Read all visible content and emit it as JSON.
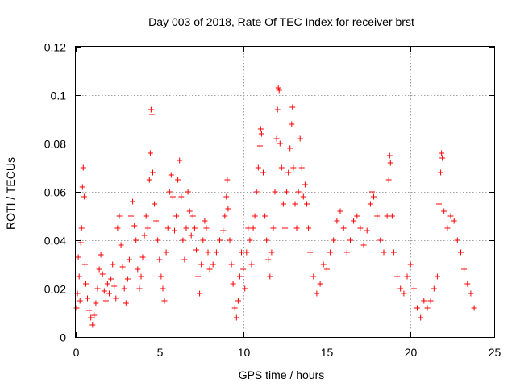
{
  "chart_data": {
    "type": "scatter",
    "title": "Day 003 of 2018, Rate Of TEC Index for receiver brst",
    "xlabel": "GPS time / hours",
    "ylabel": "ROTI / TECUs",
    "xlim": [
      0,
      25
    ],
    "ylim": [
      0,
      0.12
    ],
    "xticks": [
      0,
      5,
      10,
      15,
      20,
      25
    ],
    "xtick_labels": [
      "0",
      "5",
      "10",
      "15",
      "20",
      "25"
    ],
    "yticks": [
      0,
      0.02,
      0.04,
      0.06,
      0.08,
      0.1,
      0.12
    ],
    "ytick_labels": [
      "0",
      "0.02",
      "0.04",
      "0.06",
      "0.08",
      "0.1",
      "0.12"
    ],
    "grid": true,
    "marker": "plus",
    "color": "#ff0000",
    "series": [
      {
        "name": "ROTI",
        "points": [
          [
            0.05,
            0.012
          ],
          [
            0.1,
            0.018
          ],
          [
            0.15,
            0.033
          ],
          [
            0.2,
            0.025
          ],
          [
            0.25,
            0.015
          ],
          [
            0.3,
            0.039
          ],
          [
            0.35,
            0.045
          ],
          [
            0.4,
            0.062
          ],
          [
            0.45,
            0.07
          ],
          [
            0.5,
            0.058
          ],
          [
            0.55,
            0.03
          ],
          [
            0.6,
            0.022
          ],
          [
            0.7,
            0.016
          ],
          [
            0.8,
            0.011
          ],
          [
            0.9,
            0.008
          ],
          [
            1.0,
            0.005
          ],
          [
            1.1,
            0.009
          ],
          [
            1.2,
            0.014
          ],
          [
            1.3,
            0.02
          ],
          [
            1.4,
            0.028
          ],
          [
            1.5,
            0.034
          ],
          [
            1.6,
            0.026
          ],
          [
            1.7,
            0.019
          ],
          [
            1.8,
            0.015
          ],
          [
            1.9,
            0.022
          ],
          [
            2.0,
            0.018
          ],
          [
            2.1,
            0.024
          ],
          [
            2.2,
            0.03
          ],
          [
            2.3,
            0.021
          ],
          [
            2.4,
            0.016
          ],
          [
            2.5,
            0.045
          ],
          [
            2.6,
            0.05
          ],
          [
            2.7,
            0.038
          ],
          [
            2.8,
            0.029
          ],
          [
            2.9,
            0.02
          ],
          [
            3.0,
            0.014
          ],
          [
            3.1,
            0.024
          ],
          [
            3.2,
            0.032
          ],
          [
            3.3,
            0.05
          ],
          [
            3.4,
            0.056
          ],
          [
            3.5,
            0.046
          ],
          [
            3.6,
            0.04
          ],
          [
            3.7,
            0.028
          ],
          [
            3.8,
            0.02
          ],
          [
            3.9,
            0.025
          ],
          [
            4.0,
            0.033
          ],
          [
            4.1,
            0.042
          ],
          [
            4.2,
            0.05
          ],
          [
            4.3,
            0.045
          ],
          [
            4.4,
            0.065
          ],
          [
            4.45,
            0.076
          ],
          [
            4.5,
            0.094
          ],
          [
            4.55,
            0.092
          ],
          [
            4.6,
            0.068
          ],
          [
            4.7,
            0.055
          ],
          [
            4.8,
            0.048
          ],
          [
            4.9,
            0.04
          ],
          [
            5.0,
            0.032
          ],
          [
            5.1,
            0.025
          ],
          [
            5.2,
            0.02
          ],
          [
            5.3,
            0.015
          ],
          [
            5.4,
            0.035
          ],
          [
            5.5,
            0.045
          ],
          [
            5.6,
            0.06
          ],
          [
            5.7,
            0.067
          ],
          [
            5.8,
            0.058
          ],
          [
            5.9,
            0.044
          ],
          [
            6.0,
            0.05
          ],
          [
            6.1,
            0.065
          ],
          [
            6.2,
            0.073
          ],
          [
            6.3,
            0.058
          ],
          [
            6.4,
            0.04
          ],
          [
            6.5,
            0.032
          ],
          [
            6.6,
            0.045
          ],
          [
            6.7,
            0.06
          ],
          [
            6.8,
            0.052
          ],
          [
            6.9,
            0.042
          ],
          [
            7.0,
            0.05
          ],
          [
            7.1,
            0.045
          ],
          [
            7.2,
            0.036
          ],
          [
            7.3,
            0.025
          ],
          [
            7.4,
            0.018
          ],
          [
            7.5,
            0.03
          ],
          [
            7.6,
            0.04
          ],
          [
            7.7,
            0.048
          ],
          [
            7.8,
            0.045
          ],
          [
            7.9,
            0.035
          ],
          [
            8.0,
            0.028
          ],
          [
            8.2,
            0.03
          ],
          [
            8.4,
            0.035
          ],
          [
            8.6,
            0.04
          ],
          [
            8.8,
            0.044
          ],
          [
            8.9,
            0.05
          ],
          [
            9.0,
            0.058
          ],
          [
            9.05,
            0.065
          ],
          [
            9.1,
            0.053
          ],
          [
            9.2,
            0.04
          ],
          [
            9.3,
            0.03
          ],
          [
            9.4,
            0.022
          ],
          [
            9.5,
            0.012
          ],
          [
            9.6,
            0.008
          ],
          [
            9.7,
            0.015
          ],
          [
            9.8,
            0.025
          ],
          [
            9.9,
            0.035
          ],
          [
            10.0,
            0.028
          ],
          [
            10.1,
            0.02
          ],
          [
            10.2,
            0.035
          ],
          [
            10.3,
            0.045
          ],
          [
            10.4,
            0.04
          ],
          [
            10.5,
            0.03
          ],
          [
            10.6,
            0.045
          ],
          [
            10.7,
            0.05
          ],
          [
            10.8,
            0.06
          ],
          [
            10.9,
            0.07
          ],
          [
            11.0,
            0.079
          ],
          [
            11.05,
            0.086
          ],
          [
            11.1,
            0.084
          ],
          [
            11.2,
            0.068
          ],
          [
            11.3,
            0.05
          ],
          [
            11.4,
            0.04
          ],
          [
            11.5,
            0.032
          ],
          [
            11.6,
            0.025
          ],
          [
            11.7,
            0.035
          ],
          [
            11.8,
            0.045
          ],
          [
            11.9,
            0.06
          ],
          [
            12.0,
            0.082
          ],
          [
            12.05,
            0.094
          ],
          [
            12.1,
            0.103
          ],
          [
            12.15,
            0.102
          ],
          [
            12.2,
            0.08
          ],
          [
            12.3,
            0.07
          ],
          [
            12.4,
            0.055
          ],
          [
            12.5,
            0.045
          ],
          [
            12.6,
            0.06
          ],
          [
            12.7,
            0.068
          ],
          [
            12.8,
            0.078
          ],
          [
            12.9,
            0.088
          ],
          [
            12.95,
            0.095
          ],
          [
            13.0,
            0.07
          ],
          [
            13.1,
            0.055
          ],
          [
            13.2,
            0.045
          ],
          [
            13.3,
            0.06
          ],
          [
            13.4,
            0.082
          ],
          [
            13.5,
            0.07
          ],
          [
            13.6,
            0.058
          ],
          [
            13.7,
            0.063
          ],
          [
            13.8,
            0.055
          ],
          [
            13.9,
            0.045
          ],
          [
            14.0,
            0.035
          ],
          [
            14.2,
            0.025
          ],
          [
            14.4,
            0.018
          ],
          [
            14.6,
            0.022
          ],
          [
            14.8,
            0.03
          ],
          [
            15.0,
            0.028
          ],
          [
            15.2,
            0.035
          ],
          [
            15.4,
            0.04
          ],
          [
            15.6,
            0.048
          ],
          [
            15.8,
            0.052
          ],
          [
            16.0,
            0.045
          ],
          [
            16.2,
            0.035
          ],
          [
            16.4,
            0.04
          ],
          [
            16.6,
            0.048
          ],
          [
            16.8,
            0.05
          ],
          [
            17.0,
            0.045
          ],
          [
            17.2,
            0.038
          ],
          [
            17.4,
            0.044
          ],
          [
            17.6,
            0.055
          ],
          [
            17.7,
            0.06
          ],
          [
            17.8,
            0.058
          ],
          [
            18.0,
            0.05
          ],
          [
            18.2,
            0.04
          ],
          [
            18.4,
            0.035
          ],
          [
            18.6,
            0.05
          ],
          [
            18.7,
            0.065
          ],
          [
            18.75,
            0.075
          ],
          [
            18.8,
            0.072
          ],
          [
            18.9,
            0.05
          ],
          [
            19.0,
            0.035
          ],
          [
            19.2,
            0.025
          ],
          [
            19.4,
            0.02
          ],
          [
            19.6,
            0.018
          ],
          [
            19.8,
            0.025
          ],
          [
            20.0,
            0.03
          ],
          [
            20.2,
            0.02
          ],
          [
            20.4,
            0.012
          ],
          [
            20.6,
            0.008
          ],
          [
            20.8,
            0.015
          ],
          [
            21.0,
            0.012
          ],
          [
            21.2,
            0.015
          ],
          [
            21.4,
            0.02
          ],
          [
            21.6,
            0.025
          ],
          [
            21.7,
            0.055
          ],
          [
            21.8,
            0.068
          ],
          [
            21.85,
            0.076
          ],
          [
            21.9,
            0.074
          ],
          [
            22.0,
            0.052
          ],
          [
            22.2,
            0.045
          ],
          [
            22.4,
            0.05
          ],
          [
            22.6,
            0.048
          ],
          [
            22.8,
            0.04
          ],
          [
            23.0,
            0.035
          ],
          [
            23.2,
            0.028
          ],
          [
            23.4,
            0.022
          ],
          [
            23.6,
            0.018
          ],
          [
            23.8,
            0.012
          ]
        ]
      }
    ]
  }
}
